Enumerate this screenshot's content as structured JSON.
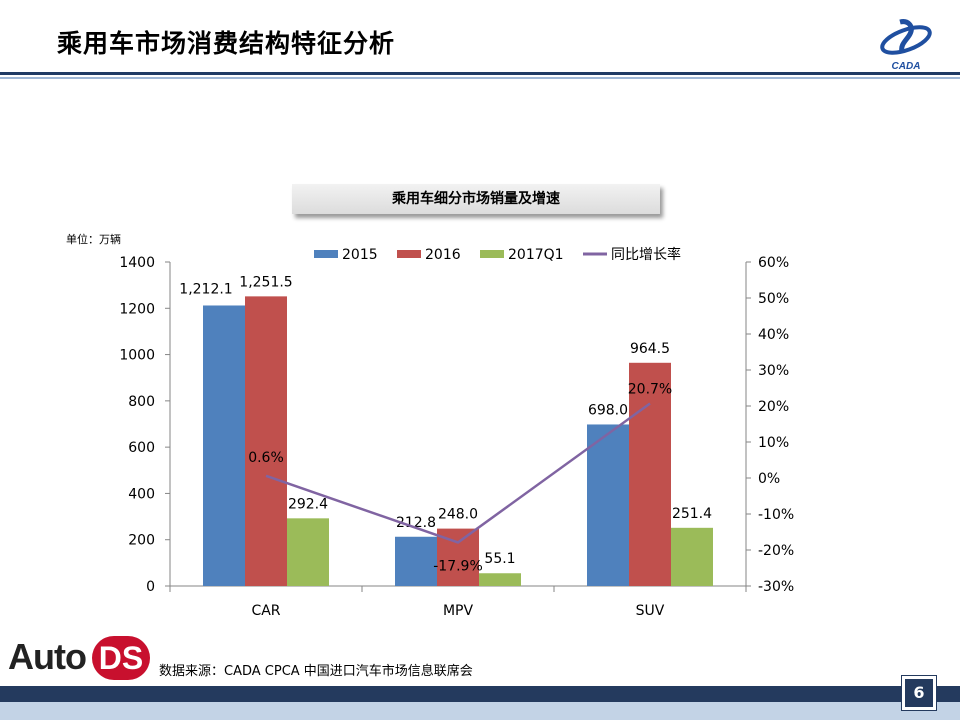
{
  "page": {
    "title": "乘用车市场消费结构特征分析",
    "chart_heading": "乘用车细分市场销量及增速",
    "unit_label": "单位：万辆",
    "source_note": "数据来源：CADA  CPCA  中国进口汽车市场信息联席会",
    "page_number": "6",
    "logo_top_right": "CADA",
    "logo_bottom_left": "AutoDS"
  },
  "colors": {
    "s2015": "#4f81bd",
    "s2016": "#c0504d",
    "s2017": "#9bbb59",
    "line": "#8064a2",
    "navy": "#243a5e"
  },
  "chart_data": {
    "type": "bar",
    "categories": [
      "CAR",
      "MPV",
      "SUV"
    ],
    "series": [
      {
        "name": "2015",
        "values": [
          1212.1,
          212.8,
          698.0
        ],
        "labels": [
          "1,212.1",
          "212.8",
          "698.0"
        ]
      },
      {
        "name": "2016",
        "values": [
          1251.5,
          248.0,
          964.5
        ],
        "labels": [
          "1,251.5",
          "248.0",
          "964.5"
        ]
      },
      {
        "name": "2017Q1",
        "values": [
          292.4,
          55.1,
          251.4
        ],
        "labels": [
          "292.4",
          "55.1",
          "251.4"
        ]
      }
    ],
    "line_series": {
      "name": "同比增长率",
      "axis": "right",
      "values": [
        0.6,
        -17.9,
        20.7
      ],
      "labels": [
        "0.6%",
        "-17.9%",
        "20.7%"
      ]
    },
    "y_left": {
      "min": 0,
      "max": 1400,
      "ticks": [
        "0",
        "200",
        "400",
        "600",
        "800",
        "1000",
        "1200",
        "1400"
      ]
    },
    "y_right": {
      "min": -30,
      "max": 60,
      "ticks": [
        "-30%",
        "-20%",
        "-10%",
        "0%",
        "10%",
        "20%",
        "30%",
        "40%",
        "50%",
        "60%"
      ]
    },
    "legend_position": "top",
    "grid": false
  }
}
